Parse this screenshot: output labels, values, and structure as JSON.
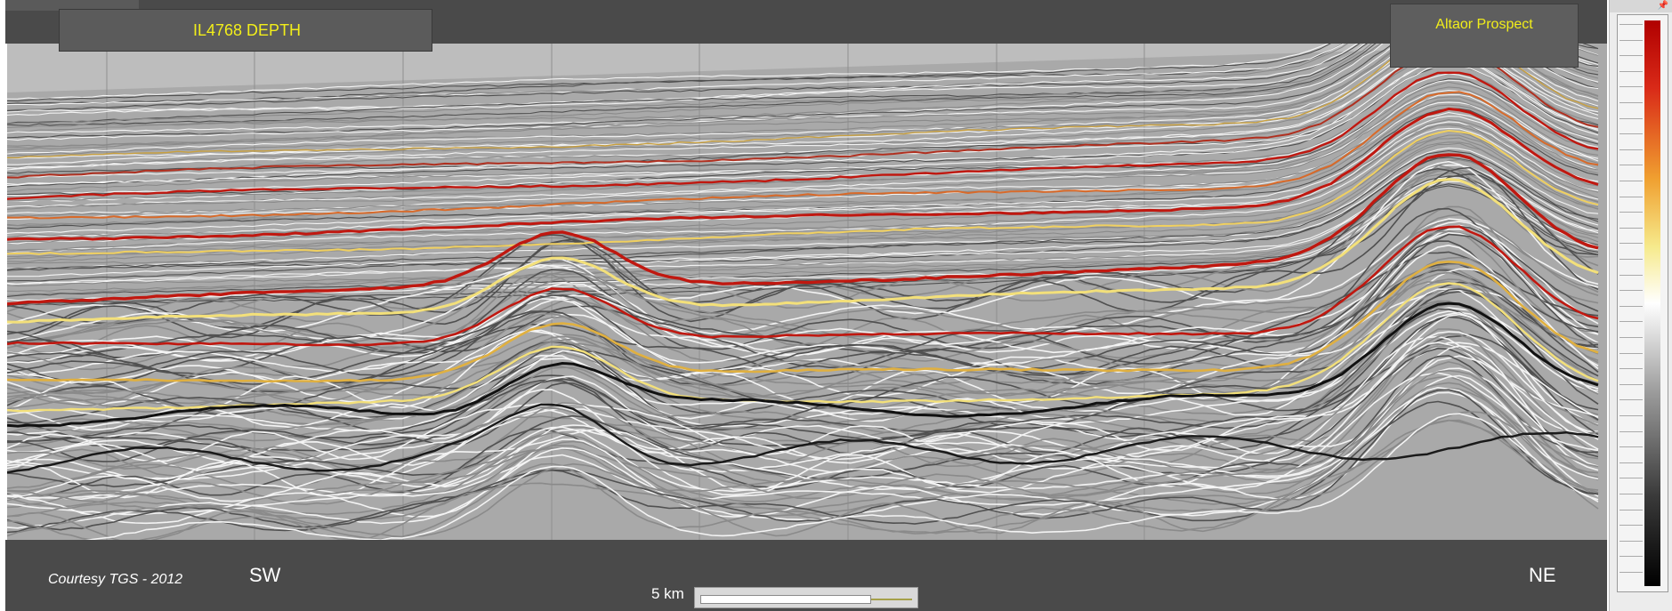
{
  "header": {
    "line_title": "IL4768 DEPTH",
    "prospect": "Altaor Prospect"
  },
  "footer": {
    "courtesy": "Courtesy TGS - 2012",
    "left_direction": "SW",
    "right_direction": "NE",
    "scale_label": "5 km"
  },
  "colors": {
    "title_text": "#f2ee1a",
    "panel_bg": "#4a4a4a",
    "positive_amplitude": "#c01810",
    "mid_amplitude": "#f0e06a",
    "negative_amplitude": "#000000"
  },
  "color_scale": {
    "icon": "pin-icon"
  }
}
